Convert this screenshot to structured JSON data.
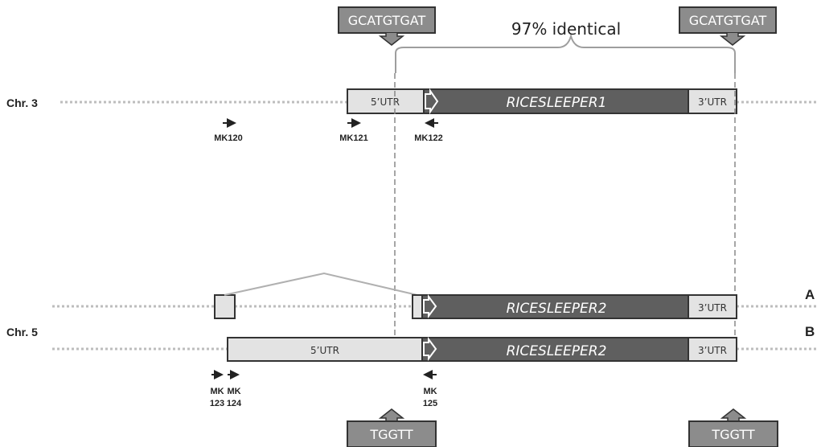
{
  "chromosomes": {
    "chr3": "Chr. 3",
    "chr5": "Chr. 5"
  },
  "variants": {
    "a": "A",
    "b": "B"
  },
  "identity_label": "97% identical",
  "motifs": {
    "top_left": "GCATGTGAT",
    "top_right": "GCATGTGAT",
    "bottom_left": "TGGTT",
    "bottom_right": "TGGTT"
  },
  "genes": {
    "chr3_gene": "RICESLEEPER1",
    "chr5_gene_a": "RICESLEEPER2",
    "chr5_gene_b": "RICESLEEPER2"
  },
  "utr": {
    "chr3_5utr": "5’UTR",
    "chr3_3utr": "3’UTR",
    "chr5a_3utr": "3’UTR",
    "chr5b_5utr": "5’UTR",
    "chr5b_3utr": "3’UTR"
  },
  "primers": {
    "mk120": "MK120",
    "mk121": "MK121",
    "mk122": "MK122",
    "mk123_top": "MK",
    "mk123_bottom": "123",
    "mk124_top": "MK",
    "mk124_bottom": "124",
    "mk125_top": "MK",
    "mk125_bottom": "125"
  },
  "colors": {
    "gene_fill": "#5f5f5f",
    "utr_fill": "#e3e3e3",
    "motif_fill": "#8c8c8c",
    "track": "#bdbdbd",
    "bracket": "#9e9e9e"
  }
}
